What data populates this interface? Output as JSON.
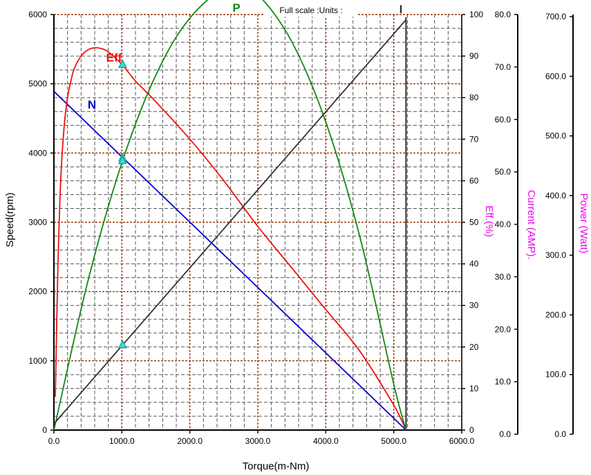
{
  "header": {
    "full_scale_label": "Full scale :Units :"
  },
  "axes": {
    "x_title": "Torque(m-Nm)",
    "speed_title": "Speed(rpm)",
    "eff_title": "Eff.(%)",
    "current_title": "Current (AMP).",
    "power_title": "Power (Watt)"
  },
  "colors": {
    "speed": "#0000cc",
    "efficiency": "#ee1111",
    "power": "#118811",
    "current": "#333333",
    "secondary_axis_title": "#ee00ee",
    "marker": "#33dddd",
    "major_grid": "#993300",
    "minor_grid": "#555555"
  },
  "chart_data": {
    "type": "line",
    "xlabel": "Torque(m-Nm)",
    "xlim": [
      0,
      6000
    ],
    "x_ticks": [
      "0.0",
      "1000.0",
      "2000.0",
      "3000.0",
      "4000.0",
      "5000.0",
      "6000.0"
    ],
    "y_axes": [
      {
        "id": "speed",
        "label": "Speed(rpm)",
        "lim": [
          0,
          6000
        ],
        "ticks": [
          "0",
          "1000",
          "2000",
          "3000",
          "4000",
          "5000",
          "6000"
        ]
      },
      {
        "id": "eff",
        "label": "Eff.(%)",
        "lim": [
          0,
          100
        ],
        "ticks": [
          "0",
          "10",
          "20",
          "30",
          "40",
          "50",
          "60",
          "70",
          "80",
          "90",
          "100"
        ]
      },
      {
        "id": "current",
        "label": "Current (AMP).",
        "lim": [
          0,
          80
        ],
        "ticks": [
          "0.0",
          "10.0",
          "20.0",
          "30.0",
          "40.0",
          "50.0",
          "60.0",
          "70.0",
          "80.0"
        ]
      },
      {
        "id": "power",
        "label": "Power (Watt)",
        "lim": [
          0,
          700
        ],
        "ticks": [
          "0.0",
          "100.0",
          "200.0",
          "300.0",
          "400.0",
          "500.0",
          "600.0",
          "700.0"
        ]
      }
    ],
    "series": [
      {
        "name": "N",
        "axis": "speed",
        "x": [
          0,
          5180
        ],
        "y": [
          4890,
          0
        ]
      },
      {
        "name": "Eff",
        "axis": "eff",
        "x": [
          20,
          60,
          100,
          150,
          200,
          250,
          300,
          400,
          500,
          600,
          700,
          800,
          1000,
          1200,
          1500,
          2000,
          2500,
          3000,
          3500,
          4000,
          4500,
          5000,
          5180
        ],
        "y": [
          8,
          40,
          60,
          73,
          80,
          84,
          87,
          90,
          91.5,
          92,
          91.8,
          91,
          88,
          84,
          79,
          70,
          60,
          49,
          39,
          29,
          19,
          6,
          0
        ]
      },
      {
        "name": "P",
        "axis": "power",
        "x": [
          0,
          500,
          1000,
          1500,
          2000,
          2590,
          3000,
          3500,
          4000,
          4500,
          5000,
          5180
        ],
        "y": [
          0,
          251,
          450,
          598,
          694,
          749,
          733,
          654,
          519,
          326,
          77,
          0
        ]
      },
      {
        "name": "I",
        "axis": "current",
        "x": [
          0,
          5180
        ],
        "y": [
          1.2,
          79
        ]
      }
    ],
    "markers": [
      {
        "series": "Eff",
        "x": 1010,
        "y": 88
      },
      {
        "series": "N",
        "x": 1010,
        "y": 3930
      },
      {
        "series": "P",
        "x": 1010,
        "y": 454
      },
      {
        "series": "I",
        "x": 1010,
        "y": 16.4
      }
    ],
    "stall_torque_line": 5180,
    "grid": true
  }
}
